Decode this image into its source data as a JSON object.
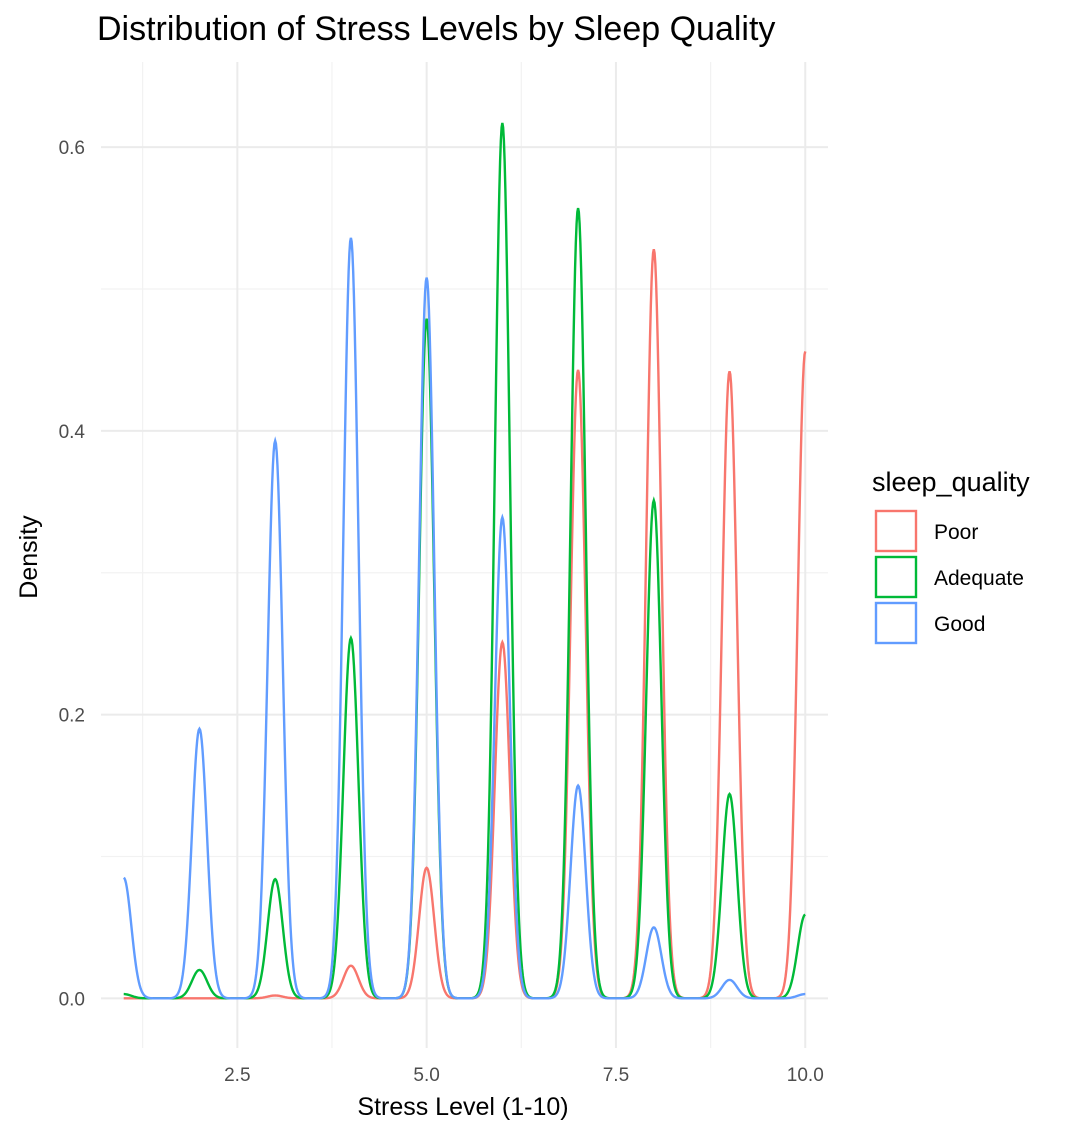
{
  "chart_data": {
    "type": "line",
    "title": "Distribution of Stress Levels by Sleep Quality",
    "xlabel": "Stress Level (1-10)",
    "ylabel": "Density",
    "xlim": [
      0.7,
      10.3
    ],
    "ylim": [
      -0.035,
      0.66
    ],
    "x_ticks": [
      2.5,
      5.0,
      7.5,
      10.0
    ],
    "x_tick_labels": [
      "2.5",
      "5.0",
      "7.5",
      "10.0"
    ],
    "y_ticks": [
      0.0,
      0.2,
      0.4,
      0.6
    ],
    "y_tick_labels": [
      "0.0",
      "0.2",
      "0.4",
      "0.6"
    ],
    "grid": true,
    "legend": {
      "title": "sleep_quality",
      "position": "right"
    },
    "series": [
      {
        "name": "Poor",
        "color": "#F8766D",
        "x": [
          1,
          2,
          3,
          4,
          5,
          6,
          7,
          8,
          9,
          10
        ],
        "peaks": [
          0.0,
          0.0,
          0.002,
          0.023,
          0.092,
          0.251,
          0.443,
          0.528,
          0.442,
          0.456
        ]
      },
      {
        "name": "Adequate",
        "color": "#00BA38",
        "x": [
          1,
          2,
          3,
          4,
          5,
          6,
          7,
          8,
          9,
          10
        ],
        "peaks": [
          0.003,
          0.02,
          0.084,
          0.254,
          0.479,
          0.617,
          0.557,
          0.351,
          0.144,
          0.059
        ]
      },
      {
        "name": "Good",
        "color": "#619CFF",
        "x": [
          1,
          2,
          3,
          4,
          5,
          6,
          7,
          8,
          9,
          10
        ],
        "peaks": [
          0.085,
          0.19,
          0.393,
          0.536,
          0.508,
          0.339,
          0.15,
          0.05,
          0.013,
          0.003
        ]
      }
    ]
  }
}
